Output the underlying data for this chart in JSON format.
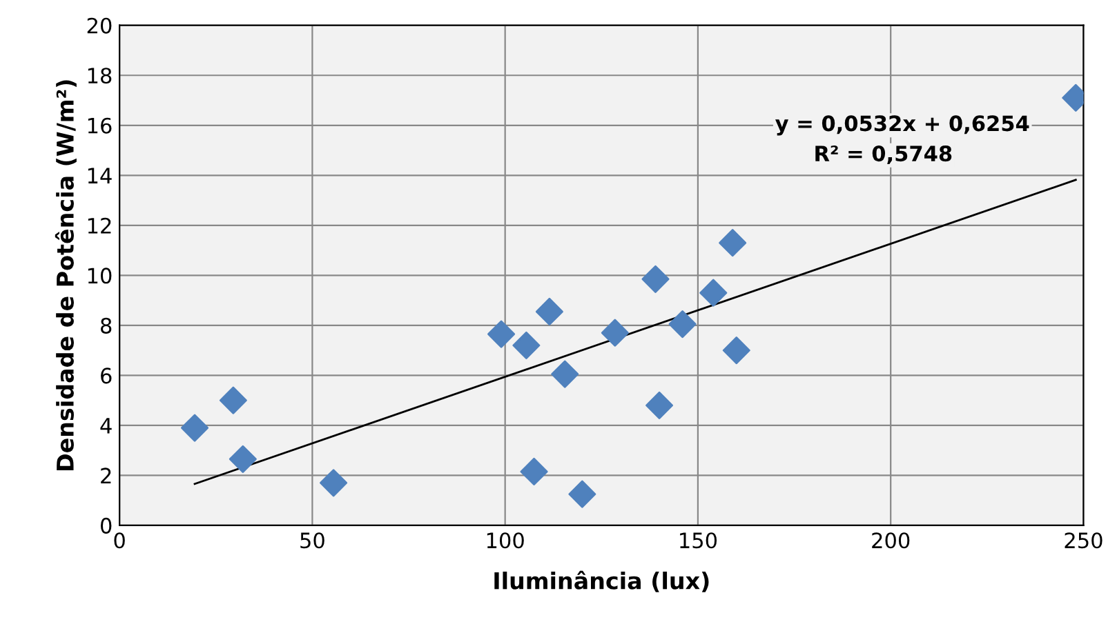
{
  "chart_data": {
    "type": "scatter",
    "xlabel": "Iluminância (lux)",
    "ylabel": "Densidade de Potência (W/m²)",
    "xlim": [
      0,
      250
    ],
    "xticks": [
      0,
      50,
      100,
      150,
      200,
      250
    ],
    "ylim": [
      0,
      20
    ],
    "yticks": [
      0,
      2,
      4,
      6,
      8,
      10,
      12,
      14,
      16,
      18,
      20
    ],
    "grid": true,
    "marker": "diamond",
    "legend": false,
    "series": [
      {
        "color": "#4f81bd",
        "x": [
          19.5,
          29.5,
          32,
          55.5,
          99,
          105.5,
          107.5,
          111.5,
          115.5,
          120,
          128.5,
          139,
          140,
          146,
          154,
          159,
          160,
          248
        ],
        "values": [
          3.9,
          5.0,
          2.65,
          1.7,
          7.65,
          7.2,
          2.15,
          8.55,
          6.05,
          1.25,
          7.7,
          9.85,
          4.8,
          8.05,
          9.3,
          11.3,
          7.0,
          17.1
        ]
      },
      {
        "type": "line",
        "color": "#000000",
        "marker": "none",
        "x": [
          19.5,
          248
        ],
        "values": [
          1.66,
          13.82
        ]
      }
    ],
    "annotations": [
      "y = 0,0532x + 0,6254",
      "R² = 0,5748"
    ]
  }
}
